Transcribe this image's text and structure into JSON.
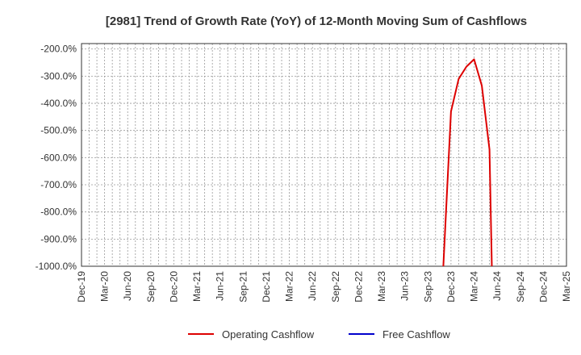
{
  "chart_data": {
    "type": "line",
    "title": "[2981]  Trend of Growth Rate (YoY) of 12-Month Moving Sum of Cashflows",
    "xlabel": "",
    "ylabel": "",
    "x_ticks": [
      "Dec-19",
      "Mar-20",
      "Jun-20",
      "Sep-20",
      "Dec-20",
      "Mar-21",
      "Jun-21",
      "Sep-21",
      "Dec-21",
      "Mar-22",
      "Jun-22",
      "Sep-22",
      "Dec-22",
      "Mar-23",
      "Jun-23",
      "Sep-23",
      "Dec-23",
      "Mar-24",
      "Jun-24",
      "Sep-24",
      "Dec-24",
      "Mar-25"
    ],
    "x_range_months": [
      "2019-12",
      "2025-03"
    ],
    "ylim": [
      -1000,
      -180
    ],
    "y_ticks": [
      -200,
      -300,
      -400,
      -500,
      -600,
      -700,
      -800,
      -900,
      -1000
    ],
    "y_tick_labels": [
      "-200.0%",
      "-300.0%",
      "-400.0%",
      "-500.0%",
      "-600.0%",
      "-700.0%",
      "-800.0%",
      "-900.0%",
      "-1000.0%"
    ],
    "grid": true,
    "legend_position": "bottom",
    "series": [
      {
        "name": "Operating Cashflow",
        "color": "#dd0000",
        "points": [
          {
            "x": "2023-11",
            "y": -1000
          },
          {
            "x": "2023-12",
            "y": -430
          },
          {
            "x": "2024-01",
            "y": -310
          },
          {
            "x": "2024-02",
            "y": -265
          },
          {
            "x": "2024-03",
            "y": -238
          },
          {
            "x": "2024-04",
            "y": -335
          },
          {
            "x": "2024-05",
            "y": -570
          },
          {
            "x": "2024-05.3",
            "y": -1000
          }
        ]
      },
      {
        "name": "Free Cashflow",
        "color": "#0000cc",
        "points": []
      }
    ]
  }
}
